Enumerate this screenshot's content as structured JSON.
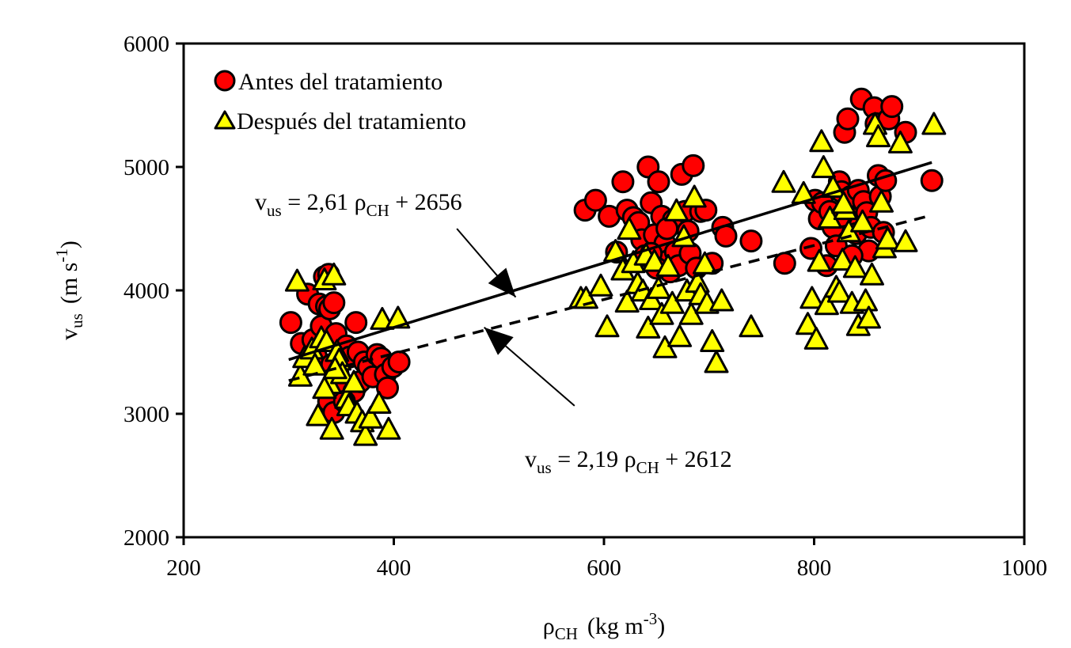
{
  "chart_data": {
    "type": "scatter",
    "xlim": [
      200,
      1000
    ],
    "ylim": [
      2000,
      6000
    ],
    "x_ticks": [
      "200",
      "400",
      "600",
      "800",
      "1000"
    ],
    "y_ticks": [
      "2000",
      "3000",
      "4000",
      "5000",
      "6000"
    ],
    "xlabel": {
      "symbol": "ρ",
      "sub": "CH",
      "unit": "(kg m",
      "sup": "-3",
      "close": ")"
    },
    "ylabel": {
      "symbol": "v",
      "sub": "us",
      "unit": "(m s",
      "sup": "-1",
      "close": ")"
    },
    "legend_position": "top-left",
    "grid": false,
    "colors": {
      "antes": "#ff0000",
      "despues": "#ffff00",
      "outline": "#000000"
    },
    "series": [
      {
        "name": "Antes del tratamiento",
        "marker": "circle",
        "points": [
          [
            302,
            3740
          ],
          [
            312,
            3570
          ],
          [
            318,
            3970
          ],
          [
            323,
            3600
          ],
          [
            326,
            3470
          ],
          [
            329,
            3890
          ],
          [
            331,
            3710
          ],
          [
            334,
            4110
          ],
          [
            336,
            3870
          ],
          [
            338,
            4130
          ],
          [
            339,
            3850
          ],
          [
            341,
            3400
          ],
          [
            343,
            3900
          ],
          [
            345,
            3650
          ],
          [
            338,
            3100
          ],
          [
            347,
            3320
          ],
          [
            349,
            3200
          ],
          [
            352,
            3480
          ],
          [
            355,
            3550
          ],
          [
            358,
            3460
          ],
          [
            362,
            3180
          ],
          [
            364,
            3740
          ],
          [
            366,
            3500
          ],
          [
            368,
            3260
          ],
          [
            372,
            3420
          ],
          [
            376,
            3380
          ],
          [
            380,
            3300
          ],
          [
            384,
            3480
          ],
          [
            388,
            3450
          ],
          [
            392,
            3320
          ],
          [
            394,
            3210
          ],
          [
            399,
            3380
          ],
          [
            405,
            3420
          ],
          [
            343,
            3010
          ],
          [
            353,
            3100
          ],
          [
            582,
            4650
          ],
          [
            592,
            4730
          ],
          [
            605,
            4600
          ],
          [
            612,
            4310
          ],
          [
            618,
            4880
          ],
          [
            622,
            4650
          ],
          [
            628,
            4590
          ],
          [
            633,
            4550
          ],
          [
            636,
            4410
          ],
          [
            639,
            4280
          ],
          [
            642,
            5000
          ],
          [
            645,
            4710
          ],
          [
            648,
            4450
          ],
          [
            652,
            4880
          ],
          [
            655,
            4600
          ],
          [
            658,
            4380
          ],
          [
            661,
            4240
          ],
          [
            663,
            4150
          ],
          [
            666,
            4570
          ],
          [
            668,
            4310
          ],
          [
            671,
            4200
          ],
          [
            674,
            4940
          ],
          [
            677,
            4640
          ],
          [
            680,
            4480
          ],
          [
            682,
            4300
          ],
          [
            685,
            5010
          ],
          [
            688,
            4180
          ],
          [
            692,
            4640
          ],
          [
            697,
            4650
          ],
          [
            703,
            4220
          ],
          [
            713,
            4510
          ],
          [
            716,
            4440
          ],
          [
            740,
            4400
          ],
          [
            645,
            4300
          ],
          [
            660,
            4500
          ],
          [
            650,
            4180
          ],
          [
            772,
            4220
          ],
          [
            797,
            4340
          ],
          [
            801,
            4730
          ],
          [
            805,
            4580
          ],
          [
            808,
            4710
          ],
          [
            812,
            4200
          ],
          [
            815,
            4640
          ],
          [
            818,
            4510
          ],
          [
            821,
            4360
          ],
          [
            824,
            4880
          ],
          [
            826,
            4800
          ],
          [
            829,
            5280
          ],
          [
            832,
            5390
          ],
          [
            835,
            4760
          ],
          [
            837,
            4580
          ],
          [
            840,
            4460
          ],
          [
            842,
            4810
          ],
          [
            845,
            5550
          ],
          [
            847,
            4720
          ],
          [
            850,
            4630
          ],
          [
            852,
            4320
          ],
          [
            854,
            4510
          ],
          [
            857,
            5480
          ],
          [
            859,
            5350
          ],
          [
            861,
            4930
          ],
          [
            863,
            4760
          ],
          [
            866,
            4470
          ],
          [
            868,
            4890
          ],
          [
            871,
            5390
          ],
          [
            874,
            5490
          ],
          [
            887,
            5280
          ],
          [
            912,
            4890
          ],
          [
            836,
            4280
          ],
          [
            826,
            4600
          ]
        ]
      },
      {
        "name": "Después del tratamiento",
        "marker": "triangle",
        "points": [
          [
            308,
            4070
          ],
          [
            311,
            3300
          ],
          [
            315,
            3450
          ],
          [
            322,
            3520
          ],
          [
            325,
            3390
          ],
          [
            328,
            2980
          ],
          [
            331,
            3610
          ],
          [
            334,
            4080
          ],
          [
            336,
            3580
          ],
          [
            339,
            3240
          ],
          [
            341,
            2870
          ],
          [
            343,
            4120
          ],
          [
            346,
            3500
          ],
          [
            348,
            3430
          ],
          [
            351,
            3320
          ],
          [
            355,
            3120
          ],
          [
            357,
            3060
          ],
          [
            362,
            3250
          ],
          [
            365,
            3000
          ],
          [
            370,
            2930
          ],
          [
            373,
            2820
          ],
          [
            378,
            2960
          ],
          [
            386,
            3080
          ],
          [
            389,
            3760
          ],
          [
            395,
            2870
          ],
          [
            404,
            3770
          ],
          [
            344,
            3360
          ],
          [
            334,
            3200
          ],
          [
            578,
            3930
          ],
          [
            583,
            3930
          ],
          [
            597,
            4030
          ],
          [
            603,
            3700
          ],
          [
            611,
            4310
          ],
          [
            618,
            4160
          ],
          [
            622,
            3900
          ],
          [
            624,
            4490
          ],
          [
            628,
            4220
          ],
          [
            632,
            4050
          ],
          [
            637,
            3990
          ],
          [
            640,
            4280
          ],
          [
            642,
            3690
          ],
          [
            645,
            3920
          ],
          [
            648,
            4230
          ],
          [
            652,
            4010
          ],
          [
            655,
            3800
          ],
          [
            658,
            3530
          ],
          [
            661,
            4190
          ],
          [
            665,
            3890
          ],
          [
            669,
            4640
          ],
          [
            672,
            3620
          ],
          [
            676,
            4430
          ],
          [
            679,
            3990
          ],
          [
            683,
            3800
          ],
          [
            686,
            4750
          ],
          [
            689,
            4060
          ],
          [
            692,
            3960
          ],
          [
            696,
            4210
          ],
          [
            698,
            3890
          ],
          [
            703,
            3580
          ],
          [
            707,
            3410
          ],
          [
            712,
            3910
          ],
          [
            740,
            3700
          ],
          [
            771,
            4870
          ],
          [
            790,
            4780
          ],
          [
            794,
            3720
          ],
          [
            798,
            3930
          ],
          [
            802,
            3600
          ],
          [
            805,
            4230
          ],
          [
            807,
            5200
          ],
          [
            809,
            4990
          ],
          [
            812,
            3880
          ],
          [
            815,
            4580
          ],
          [
            818,
            4830
          ],
          [
            821,
            4020
          ],
          [
            824,
            3980
          ],
          [
            827,
            4240
          ],
          [
            830,
            4650
          ],
          [
            833,
            4470
          ],
          [
            836,
            3890
          ],
          [
            839,
            4180
          ],
          [
            842,
            3710
          ],
          [
            846,
            4550
          ],
          [
            849,
            3910
          ],
          [
            852,
            3770
          ],
          [
            855,
            4120
          ],
          [
            858,
            5340
          ],
          [
            861,
            5240
          ],
          [
            864,
            4710
          ],
          [
            867,
            4340
          ],
          [
            870,
            4410
          ],
          [
            882,
            5190
          ],
          [
            887,
            4390
          ],
          [
            914,
            5340
          ],
          [
            828,
            4700
          ]
        ]
      }
    ],
    "trendlines": [
      {
        "series": "Antes del tratamiento",
        "style": "solid",
        "x_range": [
          300,
          912
        ],
        "slope": 2.61,
        "intercept": 2656
      },
      {
        "series": "Después del tratamiento",
        "style": "dashed",
        "x_range": [
          300,
          912
        ],
        "slope": 2.19,
        "intercept": 2612
      }
    ],
    "annotations": [
      {
        "name": "antes",
        "parts": [
          "v",
          "us",
          " = 2,61 ρ",
          "CH",
          " + 2656"
        ],
        "arrow_target": [
          516,
          3945
        ],
        "arrow_from": [
          460,
          4500
        ]
      },
      {
        "name": "despues",
        "parts": [
          "v",
          "us",
          " = 2,19 ρ",
          "CH",
          " + 2612"
        ],
        "arrow_target": [
          486,
          3700
        ],
        "arrow_from": [
          572,
          3065
        ]
      }
    ]
  }
}
